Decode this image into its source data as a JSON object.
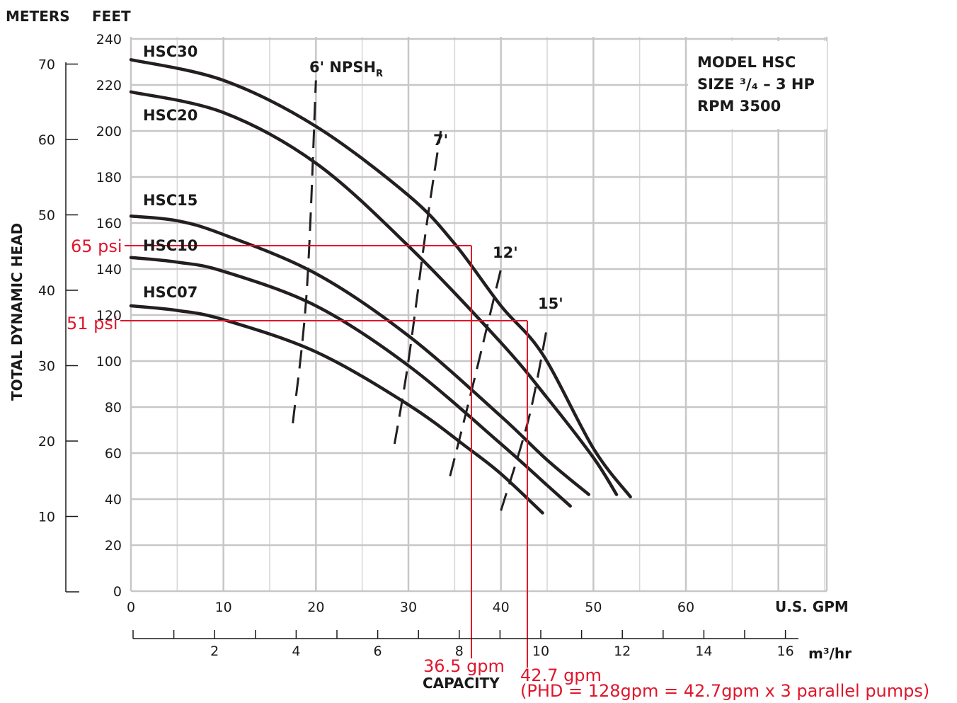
{
  "chart_data": {
    "type": "line",
    "model_box": [
      "MODEL HSC",
      "SIZE ³/₄ – 3 HP",
      "RPM 3500"
    ],
    "ylabel": "TOTAL DYNAMIC HEAD",
    "units": {
      "meters": "METERS",
      "feet": "FEET",
      "gpm": "U.S. GPM",
      "m3hr": "m³/hr"
    },
    "capacity_label": "CAPACITY",
    "x_range_gpm": [
      0,
      75
    ],
    "y_range_feet": [
      0,
      240
    ],
    "gpm_ticks": [
      "0",
      "10",
      "20",
      "30",
      "40",
      "50",
      "60"
    ],
    "feet_ticks": [
      "0",
      "20",
      "40",
      "60",
      "80",
      "100",
      "120",
      "140",
      "160",
      "180",
      "200",
      "220",
      "240"
    ],
    "meter_ticks": [
      "10",
      "20",
      "30",
      "40",
      "50",
      "60",
      "70"
    ],
    "m3hr_ticks": [
      "2",
      "4",
      "6",
      "8",
      "10",
      "12",
      "14",
      "16"
    ],
    "series": [
      {
        "name": "HSC30",
        "x": [
          0,
          10,
          20,
          30,
          35,
          40,
          44.5,
          50,
          54
        ],
        "y": [
          231,
          222,
          202,
          172,
          151,
          124,
          103,
          62,
          41
        ]
      },
      {
        "name": "HSC20",
        "x": [
          0,
          10,
          20,
          30,
          40,
          45,
          50,
          52.5
        ],
        "y": [
          217,
          208,
          186,
          150,
          108,
          84,
          58,
          42
        ]
      },
      {
        "name": "HSC15",
        "x": [
          0,
          5,
          10,
          20,
          30,
          40,
          45,
          49.5
        ],
        "y": [
          163,
          161,
          155,
          138,
          111,
          76,
          57,
          42
        ]
      },
      {
        "name": "HSC10",
        "x": [
          0,
          5,
          10,
          20,
          30,
          40,
          45,
          47.5
        ],
        "y": [
          145,
          143,
          139,
          124,
          98,
          64,
          46,
          37
        ]
      },
      {
        "name": "HSC07",
        "x": [
          0,
          5,
          10,
          20,
          30,
          36.5,
          40,
          44.5
        ],
        "y": [
          124,
          122,
          118,
          104,
          81,
          62,
          51,
          34
        ]
      }
    ],
    "npsh_curves": [
      {
        "name": "6'",
        "x": [
          17.5,
          19,
          20
        ],
        "y": [
          73,
          130,
          222
        ]
      },
      {
        "name": "7'",
        "x": [
          28.5,
          30,
          32,
          33.5
        ],
        "y": [
          64,
          100,
          160,
          200
        ]
      },
      {
        "name": "12'",
        "x": [
          34.5,
          37,
          40
        ],
        "y": [
          50,
          90,
          140
        ]
      },
      {
        "name": "15'",
        "x": [
          40,
          43,
          45
        ],
        "y": [
          35,
          75,
          115
        ]
      }
    ],
    "npsh_header": "6'  NPSH",
    "npsh_subscript": "R",
    "annotations": {
      "psi65": "65 psi",
      "psi51": "51 psi",
      "gpm365": "36.5 gpm",
      "gpm427": "42.7 gpm",
      "phd_note": "(PHD = 128gpm = 42.7gpm x 3 parallel pumps)"
    },
    "operating_points": [
      {
        "gpm": 36.5,
        "feet": 150
      },
      {
        "gpm": 42.7,
        "feet": 118
      }
    ],
    "grid": true
  }
}
